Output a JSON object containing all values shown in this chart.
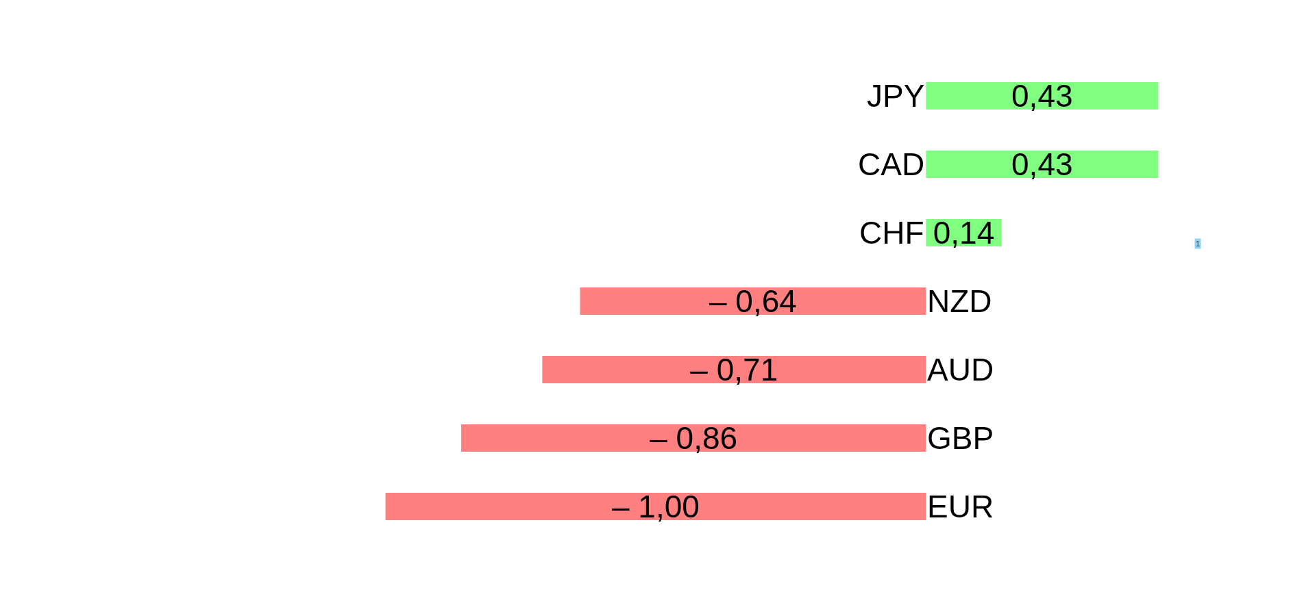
{
  "chart_data": {
    "type": "bar",
    "orientation": "horizontal",
    "categories": [
      "JPY",
      "CAD",
      "CHF",
      "NZD",
      "AUD",
      "GBP",
      "EUR"
    ],
    "values": [
      0.43,
      0.43,
      0.14,
      -0.64,
      -0.71,
      -0.86,
      -1.0
    ],
    "colors": [
      "#80ff80",
      "#80ff80",
      "#80ff80",
      "#ff8080",
      "#ff8080",
      "#ff8080",
      "#ff8080"
    ],
    "value_labels": [
      "0,43",
      "0,43",
      "0,14",
      "– 0,64",
      "– 0,71",
      "– 0,86",
      "– 1,00"
    ],
    "annotations": [
      "1"
    ]
  }
}
